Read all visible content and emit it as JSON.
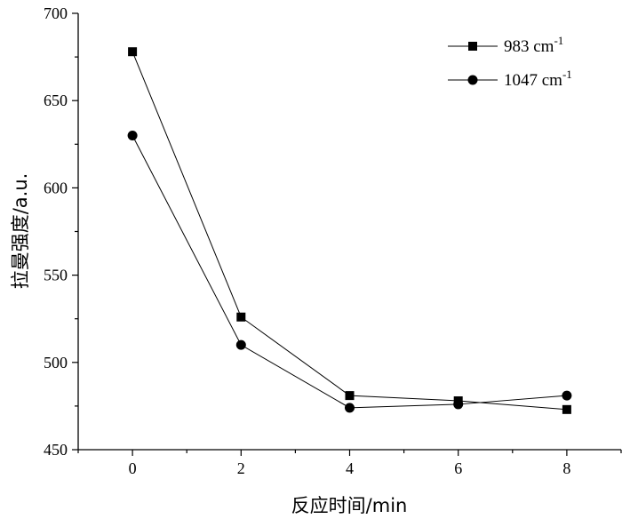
{
  "chart_data": {
    "type": "line",
    "xlabel": "反应时间/min",
    "ylabel": "拉曼强度/a.u.",
    "xlim": [
      -1,
      9
    ],
    "ylim": [
      450,
      700
    ],
    "x_ticks": [
      0,
      2,
      4,
      6,
      8
    ],
    "y_ticks": [
      450,
      500,
      550,
      600,
      650,
      700
    ],
    "grid": false,
    "legend_position": "top-right",
    "series": [
      {
        "name": "983 cm",
        "superscript": "-1",
        "marker": "square",
        "x": [
          0,
          2,
          4,
          6,
          8
        ],
        "y": [
          678,
          526,
          481,
          478,
          473
        ]
      },
      {
        "name": "1047 cm",
        "superscript": "-1",
        "marker": "circle",
        "x": [
          0,
          2,
          4,
          6,
          8
        ],
        "y": [
          630,
          510,
          474,
          476,
          481
        ]
      }
    ]
  }
}
